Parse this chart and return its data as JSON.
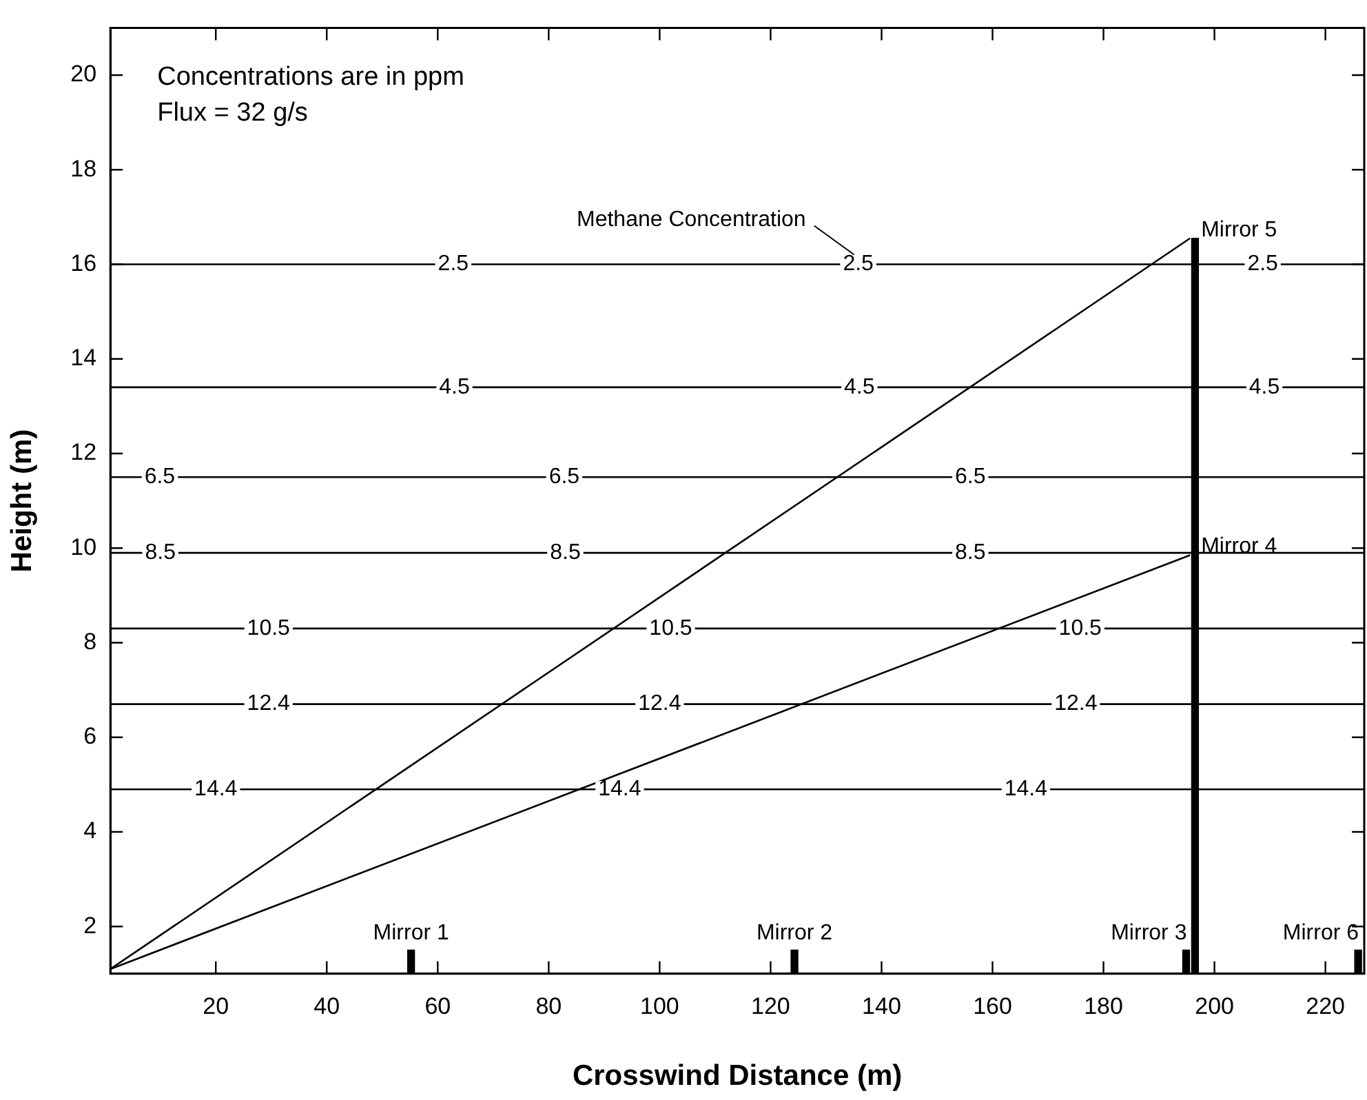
{
  "chart_data": {
    "type": "line",
    "xlabel": "Crosswind Distance (m)",
    "ylabel": "Height (m)",
    "xlim": [
      1,
      227
    ],
    "ylim": [
      1,
      21
    ],
    "xticks": [
      20,
      40,
      60,
      80,
      100,
      120,
      140,
      160,
      180,
      200,
      220
    ],
    "yticks": [
      2,
      4,
      6,
      8,
      10,
      12,
      14,
      16,
      18,
      20
    ],
    "grid": false,
    "legend": false,
    "marker": "none",
    "series": [
      {
        "color": "#000000",
        "x": [
          1,
          227
        ],
        "values": [
          16,
          16
        ]
      },
      {
        "color": "#000000",
        "x": [
          1,
          227
        ],
        "values": [
          13.4,
          13.4
        ]
      },
      {
        "color": "#000000",
        "x": [
          1,
          227
        ],
        "values": [
          11.5,
          11.5
        ]
      },
      {
        "color": "#000000",
        "x": [
          1,
          227
        ],
        "values": [
          9.9,
          9.9
        ]
      },
      {
        "color": "#000000",
        "x": [
          1,
          227
        ],
        "values": [
          8.3,
          8.3
        ]
      },
      {
        "color": "#000000",
        "x": [
          1,
          227
        ],
        "values": [
          6.7,
          6.7
        ]
      },
      {
        "color": "#000000",
        "x": [
          1,
          227
        ],
        "values": [
          4.9,
          4.9
        ]
      },
      {
        "color": "#000000",
        "x": [
          1,
          195.6
        ],
        "values": [
          1.1,
          16.55
        ]
      },
      {
        "color": "#000000",
        "x": [
          1,
          195.6
        ],
        "values": [
          1.1,
          9.85
        ]
      },
      {
        "type": "bar",
        "color": "#000000",
        "x": [
          55.2,
          124.3,
          194.9,
          196.5,
          225.9
        ],
        "base": [
          1,
          1,
          1,
          1,
          1
        ],
        "values": [
          0.5,
          0.5,
          0.5,
          15.55,
          0.5
        ]
      }
    ],
    "annotations": [
      "Concentrations are in ppm",
      "Flux = 32 g/s",
      {
        "text": "2.5",
        "x": 62.8,
        "y": 16
      },
      {
        "text": "2.5",
        "x": 135.8,
        "y": 16
      },
      {
        "text": "Methane Concentration",
        "x": 135.8,
        "y": 16
      },
      {
        "text": "2.5",
        "x": 208.7,
        "y": 16
      },
      {
        "text": "4.5",
        "x": 63,
        "y": 13.4
      },
      {
        "text": "4.5",
        "x": 136,
        "y": 13.4
      },
      {
        "text": "4.5",
        "x": 209,
        "y": 13.4
      },
      {
        "text": "6.5",
        "x": 9.9,
        "y": 11.5
      },
      {
        "text": "6.5",
        "x": 82.8,
        "y": 11.5
      },
      {
        "text": "6.5",
        "x": 156,
        "y": 11.5
      },
      {
        "text": "8.5",
        "x": 10,
        "y": 9.9
      },
      {
        "text": "8.5",
        "x": 83,
        "y": 9.9
      },
      {
        "text": "8.5",
        "x": 156,
        "y": 9.9
      },
      {
        "text": "10.5",
        "x": 29.5,
        "y": 8.3
      },
      {
        "text": "10.5",
        "x": 102,
        "y": 8.3
      },
      {
        "text": "10.5",
        "x": 175.8,
        "y": 8.3
      },
      {
        "text": "12.4",
        "x": 29.5,
        "y": 6.7
      },
      {
        "text": "12.4",
        "x": 100,
        "y": 6.7
      },
      {
        "text": "12.4",
        "x": 175,
        "y": 6.7
      },
      {
        "text": "14.4",
        "x": 20,
        "y": 4.9
      },
      {
        "text": "14.4",
        "x": 92.8,
        "y": 4.9
      },
      {
        "text": "14.4",
        "x": 166,
        "y": 4.9
      },
      {
        "text": "Mirror 1",
        "x": 55.2,
        "y": 1.5
      },
      {
        "text": "Mirror 2",
        "x": 124.3,
        "y": 1.5
      },
      {
        "text": "Mirror 3",
        "x": 194.9,
        "y": 1.5
      },
      {
        "text": "Mirror 4",
        "x": 195.6,
        "y": 9.85
      },
      {
        "text": "Mirror 5",
        "x": 195.6,
        "y": 16.55
      },
      {
        "text": "Mirror 6",
        "x": 225.9,
        "y": 1.5
      }
    ]
  }
}
